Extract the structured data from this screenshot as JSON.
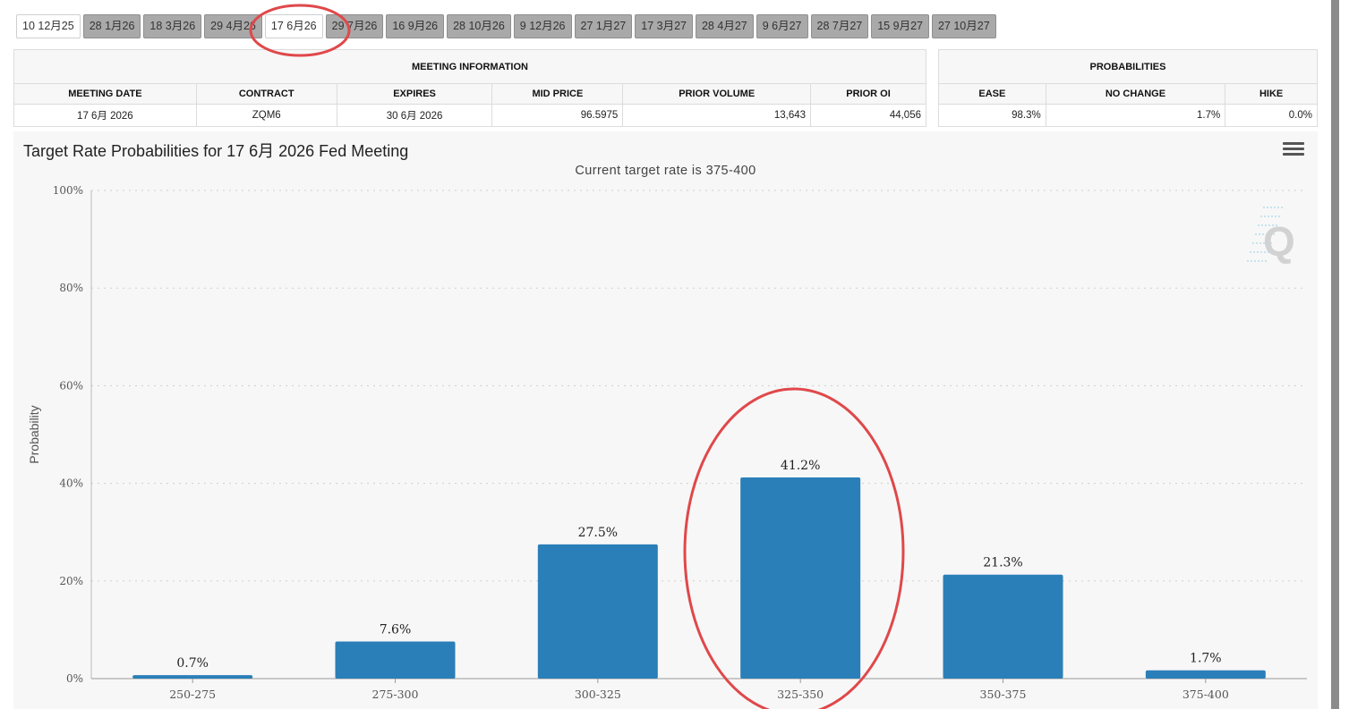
{
  "tabs": [
    {
      "label": "10 12月25",
      "active": true
    },
    {
      "label": "28 1月26",
      "active": false
    },
    {
      "label": "18 3月26",
      "active": false
    },
    {
      "label": "29 4月26",
      "active": false
    },
    {
      "label": "17 6月26",
      "active": true
    },
    {
      "label": "29 7月26",
      "active": false
    },
    {
      "label": "16 9月26",
      "active": false
    },
    {
      "label": "28 10月26",
      "active": false
    },
    {
      "label": "9 12月26",
      "active": false
    },
    {
      "label": "27 1月27",
      "active": false
    },
    {
      "label": "17 3月27",
      "active": false
    },
    {
      "label": "28 4月27",
      "active": false
    },
    {
      "label": "9 6月27",
      "active": false
    },
    {
      "label": "28 7月27",
      "active": false
    },
    {
      "label": "15 9月27",
      "active": false
    },
    {
      "label": "27 10月27",
      "active": false
    }
  ],
  "meeting_info": {
    "title": "MEETING INFORMATION",
    "headers": {
      "date": "MEETING DATE",
      "contract": "CONTRACT",
      "expires": "EXPIRES",
      "mid": "MID PRICE",
      "volume": "PRIOR VOLUME",
      "oi": "PRIOR OI"
    },
    "row": {
      "date": "17 6月 2026",
      "contract": "ZQM6",
      "expires": "30 6月 2026",
      "mid": "96.5975",
      "volume": "13,643",
      "oi": "44,056"
    }
  },
  "probabilities": {
    "title": "PROBABILITIES",
    "headers": {
      "ease": "EASE",
      "no_change": "NO CHANGE",
      "hike": "HIKE"
    },
    "row": {
      "ease": "98.3%",
      "no_change": "1.7%",
      "hike": "0.0%"
    }
  },
  "chart_data": {
    "type": "bar",
    "title": "Target Rate Probabilities for 17 6月 2026 Fed Meeting",
    "subtitle": "Current target rate is 375-400",
    "ylabel": "Probability",
    "xlabel": "",
    "categories": [
      "250-275",
      "275-300",
      "300-325",
      "325-350",
      "350-375",
      "375-400"
    ],
    "values": [
      0.7,
      7.6,
      27.5,
      41.2,
      21.3,
      1.7
    ],
    "data_labels": [
      "0.7%",
      "7.6%",
      "27.5%",
      "41.2%",
      "21.3%",
      "1.7%"
    ],
    "ylim": [
      0,
      100
    ],
    "yticks": [
      0,
      20,
      40,
      60,
      80,
      100
    ],
    "ytick_labels": [
      "0%",
      "20%",
      "40%",
      "60%",
      "80%",
      "100%"
    ],
    "grid": true,
    "legend": "none",
    "bar_color": "#2b7fb8"
  },
  "colors": {
    "annotation": "#e0484a",
    "bar": "#2b7fb8"
  }
}
